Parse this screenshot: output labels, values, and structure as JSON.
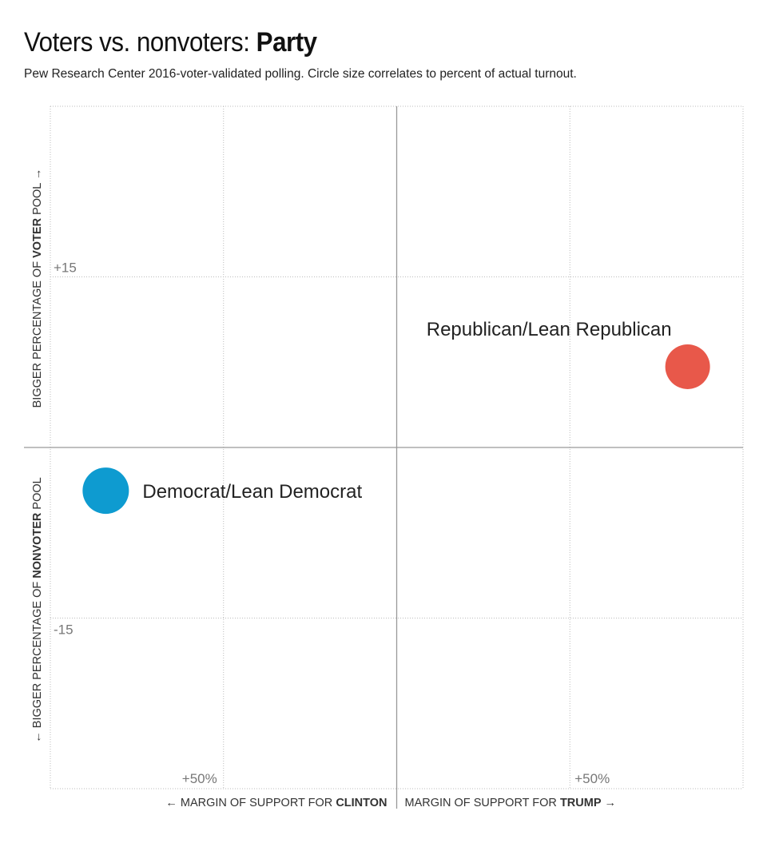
{
  "header": {
    "title_prefix": "Voters vs. nonvoters: ",
    "title_bold": "Party",
    "subtitle": "Pew Research Center 2016-voter-validated polling. Circle size correlates to percent of actual turnout."
  },
  "chart_data": {
    "type": "scatter",
    "title": "Voters vs. nonvoters: Party",
    "xlabel_left": {
      "text": "← MARGIN OF SUPPORT FOR ",
      "bold": "CLINTON"
    },
    "xlabel_right": {
      "text": "MARGIN OF SUPPORT FOR ",
      "bold": "TRUMP",
      "arrow": " →"
    },
    "ylabel_top": {
      "text": "BIGGER PERCENTAGE OF ",
      "bold": "VOTER",
      "rest": " POOL →"
    },
    "ylabel_bottom": {
      "text": "← BIGGER PERCENTAGE OF ",
      "bold": "NONVOTER",
      "rest": " POOL"
    },
    "xlim": [
      -100,
      100
    ],
    "ylim": [
      -30,
      30
    ],
    "x_ticks": [
      {
        "value": -50,
        "label": "+50%"
      },
      {
        "value": 50,
        "label": "+50%"
      }
    ],
    "y_ticks": [
      {
        "value": 15,
        "label": "+15"
      },
      {
        "value": -15,
        "label": "-15"
      }
    ],
    "grid": true,
    "points": [
      {
        "label": "Republican/Lean Republican",
        "x": 84,
        "y": 7.1,
        "size": 28,
        "color": "#e8584a"
      },
      {
        "label": "Democrat/Lean Democrat",
        "x": -84,
        "y": -3.8,
        "size": 29,
        "color": "#0e9bd0"
      }
    ]
  }
}
